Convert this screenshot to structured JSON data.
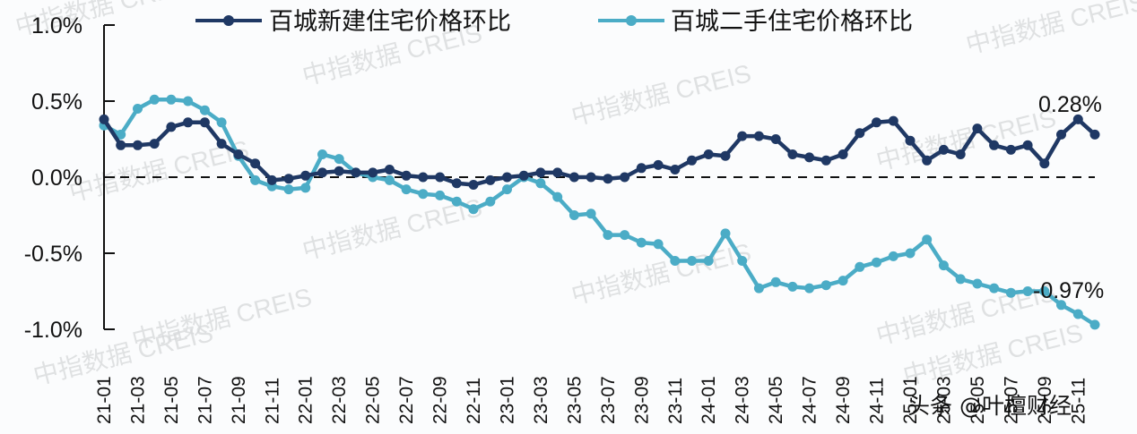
{
  "chart_data": {
    "type": "line",
    "title": "",
    "xlabel": "",
    "ylabel": "",
    "ylim": [
      -1.0,
      1.0
    ],
    "yticks": [
      "1.0%",
      "0.5%",
      "0.0%",
      "-0.5%",
      "-1.0%"
    ],
    "ytick_values": [
      1.0,
      0.5,
      0.0,
      -0.5,
      -1.0
    ],
    "reference_line": {
      "value": 0.0,
      "style": "dashed"
    },
    "grid": false,
    "legend_position": "top",
    "x": [
      "21-01",
      "21-02",
      "21-03",
      "21-04",
      "21-05",
      "21-06",
      "21-07",
      "21-08",
      "21-09",
      "21-10",
      "21-11",
      "21-12",
      "22-01",
      "22-02",
      "22-03",
      "22-04",
      "22-05",
      "22-06",
      "22-07",
      "22-08",
      "22-09",
      "22-10",
      "22-11",
      "22-12",
      "23-01",
      "23-02",
      "23-03",
      "23-04",
      "23-05",
      "23-06",
      "23-07",
      "23-08",
      "23-09",
      "23-10",
      "23-11",
      "23-12",
      "24-01",
      "24-02",
      "24-03",
      "24-04",
      "24-05",
      "24-06",
      "24-07",
      "24-08",
      "24-09",
      "24-10",
      "24-11",
      "24-12",
      "25-01",
      "25-02",
      "25-03",
      "25-04",
      "25-05",
      "25-06",
      "25-07",
      "25-08",
      "25-09",
      "25-10",
      "25-11",
      "25-12"
    ],
    "xtick_labels": [
      "21-01",
      "21-03",
      "21-05",
      "21-07",
      "21-09",
      "21-11",
      "22-01",
      "22-03",
      "22-05",
      "22-07",
      "22-09",
      "22-11",
      "23-01",
      "23-03",
      "23-05",
      "23-07",
      "23-09",
      "23-11",
      "24-01",
      "24-03",
      "24-05",
      "24-07",
      "24-09",
      "24-11",
      "25-01",
      "25-03",
      "25-05",
      "25-07",
      "25-09",
      "25-11"
    ],
    "series": [
      {
        "name": "百城新建住宅价格环比",
        "color": "#1f3864",
        "values": [
          0.38,
          0.21,
          0.21,
          0.22,
          0.33,
          0.36,
          0.36,
          0.22,
          0.15,
          0.09,
          -0.02,
          -0.01,
          0.01,
          0.03,
          0.04,
          0.03,
          0.03,
          0.05,
          0.01,
          0.0,
          0.0,
          -0.04,
          -0.05,
          -0.02,
          0.0,
          0.01,
          0.03,
          0.03,
          0.0,
          0.0,
          -0.01,
          0.0,
          0.06,
          0.08,
          0.05,
          0.11,
          0.15,
          0.14,
          0.27,
          0.27,
          0.25,
          0.15,
          0.13,
          0.11,
          0.15,
          0.29,
          0.36,
          0.37,
          0.24,
          0.11,
          0.18,
          0.15,
          0.32,
          0.21,
          0.18,
          0.21,
          0.09,
          0.28,
          0.38,
          0.28
        ],
        "end_label": "0.28%"
      },
      {
        "name": "百城二手住宅价格环比",
        "color": "#4bacc6",
        "values": [
          0.34,
          0.28,
          0.45,
          0.51,
          0.51,
          0.5,
          0.44,
          0.36,
          0.14,
          -0.02,
          -0.06,
          -0.08,
          -0.07,
          0.15,
          0.12,
          0.03,
          0.0,
          -0.02,
          -0.08,
          -0.11,
          -0.12,
          -0.16,
          -0.21,
          -0.16,
          -0.08,
          0.0,
          -0.04,
          -0.13,
          -0.25,
          -0.24,
          -0.38,
          -0.38,
          -0.43,
          -0.44,
          -0.55,
          -0.55,
          -0.55,
          -0.37,
          -0.55,
          -0.73,
          -0.69,
          -0.72,
          -0.73,
          -0.71,
          -0.68,
          -0.59,
          -0.56,
          -0.52,
          -0.5,
          -0.41,
          -0.58,
          -0.67,
          -0.7,
          -0.73,
          -0.76,
          -0.75,
          -0.75,
          -0.84,
          -0.9,
          -0.97
        ],
        "end_label": "-0.97%"
      }
    ]
  },
  "legend": {
    "items": [
      {
        "label": "百城新建住宅价格环比",
        "color": "#1f3864"
      },
      {
        "label": "百城二手住宅价格环比",
        "color": "#4bacc6"
      }
    ]
  },
  "annotations": {
    "new_end": "0.28%",
    "second_end": "-0.97%"
  },
  "watermark": {
    "text": "中指数据 CREIS"
  },
  "brand": {
    "text": "头条 @叶檀财经"
  }
}
